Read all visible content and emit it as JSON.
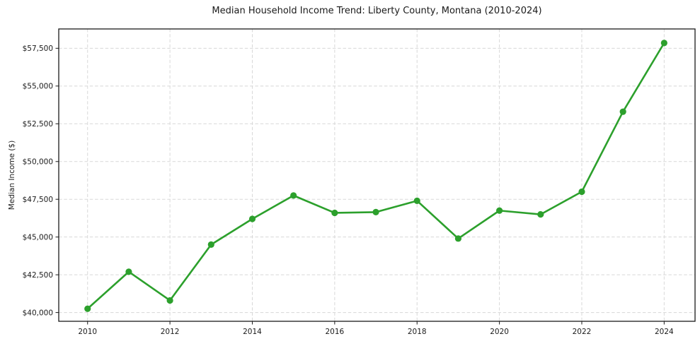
{
  "chart_data": {
    "type": "line",
    "title": "Median Household Income Trend: Liberty County, Montana (2010-2024)",
    "xlabel": "",
    "ylabel": "Median Income ($)",
    "x": [
      2010,
      2011,
      2012,
      2013,
      2014,
      2015,
      2016,
      2017,
      2018,
      2019,
      2020,
      2021,
      2022,
      2023,
      2024
    ],
    "series": [
      {
        "name": "Median Household Income",
        "values": [
          40250,
          42700,
          40800,
          44500,
          46200,
          47750,
          46600,
          46650,
          47400,
          44900,
          46750,
          46500,
          48000,
          53300,
          57850
        ],
        "color": "#2ca02c",
        "marker": "circle"
      }
    ],
    "xlim": [
      2009.3,
      2024.75
    ],
    "ylim": [
      39420,
      58780
    ],
    "xticks": [
      2010,
      2012,
      2014,
      2016,
      2018,
      2020,
      2022,
      2024
    ],
    "xtick_labels": [
      "2010",
      "2012",
      "2014",
      "2016",
      "2018",
      "2020",
      "2022",
      "2024"
    ],
    "yticks": [
      40000,
      42500,
      45000,
      47500,
      50000,
      52500,
      55000,
      57500
    ],
    "ytick_labels": [
      "$40,000",
      "$42,500",
      "$45,000",
      "$47,500",
      "$50,000",
      "$52,500",
      "$55,000",
      "$57,500"
    ],
    "grid": true,
    "grid_style": "dashed",
    "legend_position": "none"
  },
  "colors": {
    "line": "#2ca02c",
    "grid": "#d8d8d8",
    "spine": "#1a1a1a",
    "text": "#1a1a1a",
    "background": "#ffffff"
  }
}
